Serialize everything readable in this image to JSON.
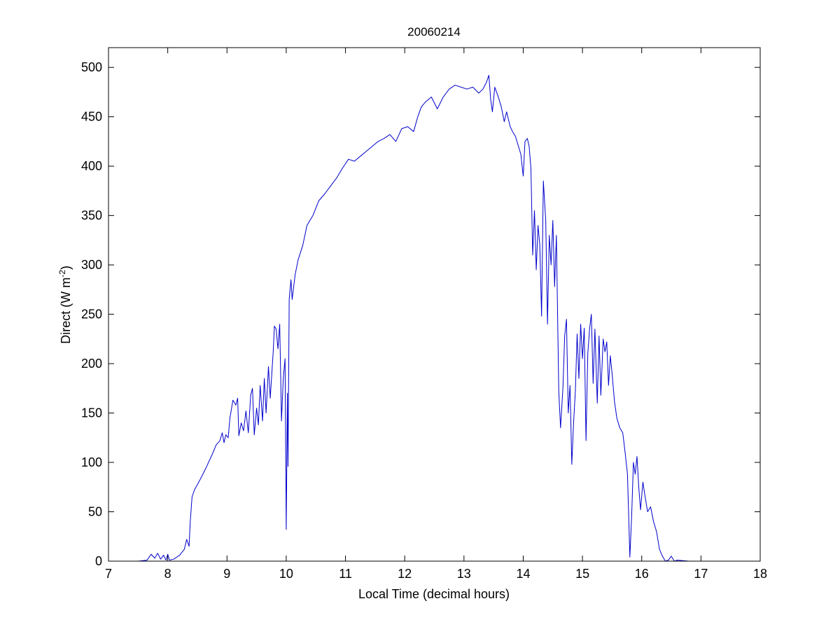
{
  "chart_data": {
    "type": "line",
    "title": "20060214",
    "xlabel": "Local Time (decimal hours)",
    "ylabel": "Direct (W m",
    "ylabel_superscript": "-2",
    "ylabel_suffix": ")",
    "xlim": [
      7,
      18
    ],
    "ylim": [
      0,
      520
    ],
    "xticks": [
      7,
      8,
      9,
      10,
      11,
      12,
      13,
      14,
      15,
      16,
      17,
      18
    ],
    "yticks": [
      0,
      50,
      100,
      150,
      200,
      250,
      300,
      350,
      400,
      450,
      500
    ],
    "grid": false,
    "series": [
      {
        "color": "#0000cc",
        "points": [
          [
            7.2,
            0
          ],
          [
            7.5,
            0
          ],
          [
            7.65,
            1
          ],
          [
            7.72,
            7
          ],
          [
            7.78,
            3
          ],
          [
            7.83,
            8
          ],
          [
            7.88,
            2
          ],
          [
            7.93,
            6
          ],
          [
            7.97,
            1
          ],
          [
            8.0,
            7
          ],
          [
            8.03,
            1
          ],
          [
            8.1,
            2
          ],
          [
            8.2,
            6
          ],
          [
            8.28,
            12
          ],
          [
            8.32,
            22
          ],
          [
            8.36,
            15
          ],
          [
            8.38,
            40
          ],
          [
            8.41,
            65
          ],
          [
            8.45,
            72
          ],
          [
            8.55,
            83
          ],
          [
            8.65,
            95
          ],
          [
            8.75,
            108
          ],
          [
            8.82,
            118
          ],
          [
            8.88,
            122
          ],
          [
            8.92,
            130
          ],
          [
            8.95,
            120
          ],
          [
            8.98,
            128
          ],
          [
            9.02,
            125
          ],
          [
            9.05,
            145
          ],
          [
            9.1,
            163
          ],
          [
            9.15,
            158
          ],
          [
            9.18,
            165
          ],
          [
            9.2,
            127
          ],
          [
            9.24,
            140
          ],
          [
            9.28,
            132
          ],
          [
            9.32,
            152
          ],
          [
            9.36,
            130
          ],
          [
            9.4,
            168
          ],
          [
            9.43,
            175
          ],
          [
            9.46,
            128
          ],
          [
            9.5,
            155
          ],
          [
            9.53,
            138
          ],
          [
            9.56,
            178
          ],
          [
            9.6,
            142
          ],
          [
            9.63,
            185
          ],
          [
            9.66,
            150
          ],
          [
            9.7,
            197
          ],
          [
            9.73,
            165
          ],
          [
            9.78,
            212
          ],
          [
            9.8,
            238
          ],
          [
            9.83,
            235
          ],
          [
            9.86,
            215
          ],
          [
            9.89,
            240
          ],
          [
            9.92,
            142
          ],
          [
            9.95,
            185
          ],
          [
            9.98,
            205
          ],
          [
            10.0,
            32
          ],
          [
            10.02,
            170
          ],
          [
            10.03,
            96
          ],
          [
            10.05,
            265
          ],
          [
            10.08,
            285
          ],
          [
            10.1,
            265
          ],
          [
            10.15,
            290
          ],
          [
            10.2,
            305
          ],
          [
            10.28,
            320
          ],
          [
            10.35,
            340
          ],
          [
            10.45,
            350
          ],
          [
            10.55,
            365
          ],
          [
            10.65,
            372
          ],
          [
            10.75,
            380
          ],
          [
            10.85,
            388
          ],
          [
            10.95,
            398
          ],
          [
            11.05,
            407
          ],
          [
            11.15,
            405
          ],
          [
            11.25,
            410
          ],
          [
            11.35,
            415
          ],
          [
            11.45,
            420
          ],
          [
            11.55,
            425
          ],
          [
            11.65,
            428
          ],
          [
            11.75,
            432
          ],
          [
            11.85,
            425
          ],
          [
            11.95,
            438
          ],
          [
            12.05,
            440
          ],
          [
            12.15,
            435
          ],
          [
            12.22,
            450
          ],
          [
            12.28,
            460
          ],
          [
            12.35,
            465
          ],
          [
            12.45,
            470
          ],
          [
            12.55,
            458
          ],
          [
            12.65,
            470
          ],
          [
            12.75,
            478
          ],
          [
            12.85,
            482
          ],
          [
            12.95,
            480
          ],
          [
            13.05,
            478
          ],
          [
            13.15,
            480
          ],
          [
            13.25,
            474
          ],
          [
            13.32,
            478
          ],
          [
            13.38,
            485
          ],
          [
            13.42,
            492
          ],
          [
            13.45,
            468
          ],
          [
            13.48,
            455
          ],
          [
            13.52,
            480
          ],
          [
            13.58,
            470
          ],
          [
            13.63,
            460
          ],
          [
            13.68,
            445
          ],
          [
            13.72,
            455
          ],
          [
            13.78,
            440
          ],
          [
            13.82,
            435
          ],
          [
            13.87,
            430
          ],
          [
            13.92,
            420
          ],
          [
            13.96,
            412
          ],
          [
            14.0,
            390
          ],
          [
            14.03,
            425
          ],
          [
            14.07,
            428
          ],
          [
            14.1,
            420
          ],
          [
            14.13,
            398
          ],
          [
            14.16,
            310
          ],
          [
            14.19,
            355
          ],
          [
            14.22,
            295
          ],
          [
            14.25,
            340
          ],
          [
            14.28,
            320
          ],
          [
            14.31,
            248
          ],
          [
            14.34,
            385
          ],
          [
            14.38,
            345
          ],
          [
            14.41,
            240
          ],
          [
            14.44,
            330
          ],
          [
            14.47,
            300
          ],
          [
            14.5,
            345
          ],
          [
            14.53,
            278
          ],
          [
            14.56,
            330
          ],
          [
            14.6,
            172
          ],
          [
            14.63,
            135
          ],
          [
            14.67,
            175
          ],
          [
            14.7,
            228
          ],
          [
            14.73,
            245
          ],
          [
            14.76,
            150
          ],
          [
            14.79,
            178
          ],
          [
            14.82,
            98
          ],
          [
            14.85,
            140
          ],
          [
            14.88,
            172
          ],
          [
            14.91,
            230
          ],
          [
            14.94,
            185
          ],
          [
            14.97,
            240
          ],
          [
            15.0,
            205
          ],
          [
            15.03,
            236
          ],
          [
            15.06,
            122
          ],
          [
            15.09,
            210
          ],
          [
            15.12,
            235
          ],
          [
            15.15,
            250
          ],
          [
            15.18,
            180
          ],
          [
            15.21,
            235
          ],
          [
            15.25,
            160
          ],
          [
            15.28,
            228
          ],
          [
            15.31,
            168
          ],
          [
            15.35,
            225
          ],
          [
            15.38,
            212
          ],
          [
            15.41,
            222
          ],
          [
            15.44,
            178
          ],
          [
            15.47,
            208
          ],
          [
            15.5,
            190
          ],
          [
            15.54,
            162
          ],
          [
            15.58,
            145
          ],
          [
            15.63,
            135
          ],
          [
            15.68,
            130
          ],
          [
            15.72,
            110
          ],
          [
            15.76,
            88
          ],
          [
            15.8,
            4
          ],
          [
            15.83,
            45
          ],
          [
            15.86,
            100
          ],
          [
            15.89,
            88
          ],
          [
            15.92,
            106
          ],
          [
            15.95,
            75
          ],
          [
            15.98,
            52
          ],
          [
            16.02,
            80
          ],
          [
            16.05,
            68
          ],
          [
            16.1,
            50
          ],
          [
            16.15,
            55
          ],
          [
            16.2,
            40
          ],
          [
            16.25,
            30
          ],
          [
            16.3,
            12
          ],
          [
            16.35,
            5
          ],
          [
            16.4,
            0
          ],
          [
            16.45,
            1
          ],
          [
            16.5,
            5
          ],
          [
            16.55,
            0
          ],
          [
            16.6,
            1
          ],
          [
            16.8,
            0
          ]
        ]
      }
    ]
  }
}
